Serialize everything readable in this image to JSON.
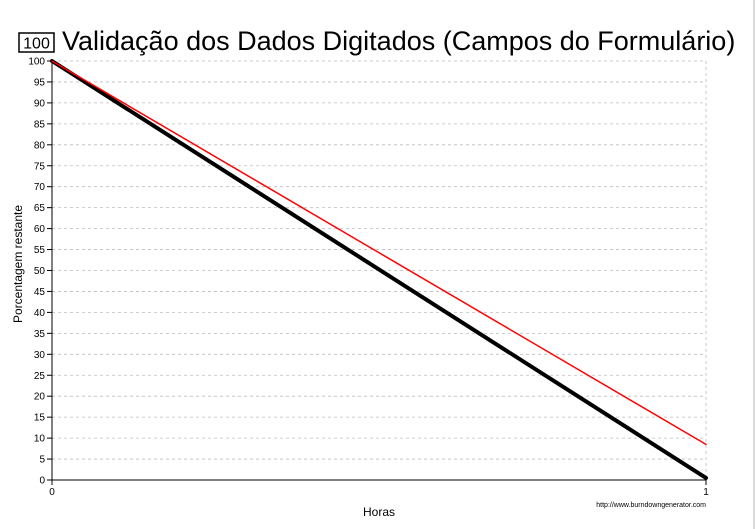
{
  "chart_data": {
    "type": "line",
    "badge": "100",
    "title": "Validação dos Dados Digitados (Campos do Formulário)",
    "xlabel": "Horas",
    "ylabel": "Porcentagem restante",
    "xlim": [
      0,
      1
    ],
    "ylim": [
      0,
      100
    ],
    "x_ticks": [
      0,
      1
    ],
    "y_ticks": [
      0,
      5,
      10,
      15,
      20,
      25,
      30,
      35,
      40,
      45,
      50,
      55,
      60,
      65,
      70,
      75,
      80,
      85,
      90,
      95,
      100
    ],
    "grid": true,
    "series": [
      {
        "color": "#000000",
        "x": [
          0,
          1
        ],
        "y": [
          100,
          0.5
        ]
      },
      {
        "color": "#ff0000",
        "x": [
          0,
          1
        ],
        "y": [
          100,
          8.5
        ]
      }
    ],
    "credit": "http://www.burndowngenerator.com"
  }
}
